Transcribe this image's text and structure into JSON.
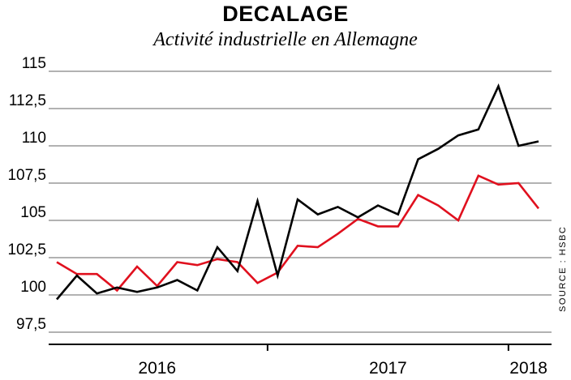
{
  "source": "SOURCE : HSBC",
  "chart_data": {
    "type": "line",
    "title": "DECALAGE",
    "subtitle": "Activité industrielle en Allemagne",
    "ylim": [
      97.5,
      115
    ],
    "yticks": [
      97.5,
      100,
      102.5,
      105,
      107.5,
      110,
      112.5,
      115
    ],
    "ytick_labels": [
      "97,5",
      "100",
      "102,5",
      "105",
      "107,5",
      "110",
      "112,5",
      "115"
    ],
    "x_labels": [
      {
        "label": "2016",
        "index": 5
      },
      {
        "label": "2017",
        "index": 16.5
      },
      {
        "label": "2018",
        "index": 23.5
      }
    ],
    "year_boundaries": [
      10.5,
      22.5
    ],
    "grid": true,
    "series": [
      {
        "name": "black",
        "color": "#000000",
        "values": [
          99.7,
          101.3,
          100.1,
          100.5,
          100.2,
          100.5,
          101.0,
          100.3,
          103.2,
          101.6,
          106.3,
          101.3,
          106.4,
          105.4,
          105.9,
          105.2,
          106.0,
          105.4,
          109.1,
          109.8,
          110.7,
          111.1,
          114.0,
          110.0,
          110.3
        ]
      },
      {
        "name": "red",
        "color": "#e0101e",
        "values": [
          102.2,
          101.4,
          101.4,
          100.3,
          101.9,
          100.6,
          102.2,
          102.0,
          102.4,
          102.2,
          100.8,
          101.5,
          103.3,
          103.2,
          104.1,
          105.1,
          104.6,
          104.6,
          106.7,
          106.0,
          105.0,
          108.0,
          107.4,
          107.5,
          105.8
        ]
      }
    ]
  }
}
